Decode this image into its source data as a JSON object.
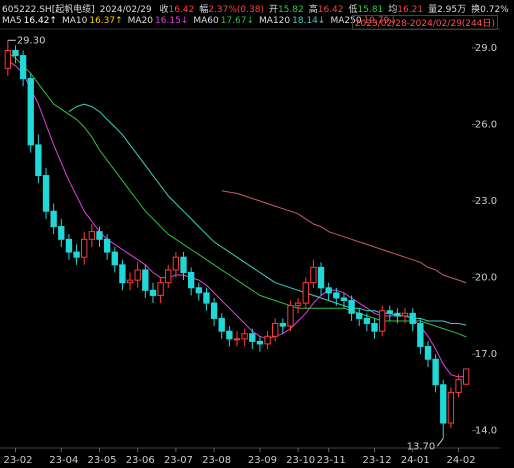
{
  "chart_data": {
    "type": "candlestick",
    "header": {
      "code": "605222.SH[起帆电缆]",
      "date": "2024/02/29",
      "fields": [
        {
          "label": "收",
          "value": "16.42",
          "color": "#ff4040"
        },
        {
          "label": "幅",
          "value": "2.37%(0.38)",
          "color": "#ff4040"
        },
        {
          "label": "开",
          "value": "15.82",
          "color": "#30d040"
        },
        {
          "label": "高",
          "value": "16.42",
          "color": "#ff4040"
        },
        {
          "label": "低",
          "value": "15.81",
          "color": "#30d040"
        },
        {
          "label": "均",
          "value": "16.21",
          "color": "#ff4040"
        },
        {
          "label": "量",
          "value": "2.95万",
          "color": "#dddddd"
        },
        {
          "label": "换",
          "value": "0.72%",
          "color": "#dddddd"
        }
      ],
      "range": "2023/02/28-2024/02/29(244日)"
    },
    "up_color": "#ff3a3a",
    "down_color": "#20d8d8",
    "open": [
      28.2,
      28.9,
      28.7,
      27.8,
      25.2,
      24.0,
      22.6,
      22.0,
      21.5,
      21.0,
      20.8,
      21.5,
      21.8,
      21.5,
      21.0,
      20.5,
      19.8,
      19.9,
      20.3,
      19.5,
      19.3,
      19.8,
      20.3,
      20.8,
      20.2,
      19.6,
      19.4,
      19.0,
      18.4,
      17.9,
      17.6,
      17.6,
      17.8,
      17.5,
      17.4,
      17.7,
      18.2,
      18.1,
      18.9,
      19.0,
      19.8,
      20.4,
      19.6,
      19.4,
      19.2,
      19.1,
      18.6,
      18.4,
      18.2,
      17.9,
      18.7,
      18.6,
      18.5,
      18.6,
      18.2,
      17.3,
      16.8,
      15.8,
      14.3,
      15.5,
      15.82
    ],
    "high": [
      29.3,
      29.1,
      28.9,
      28.0,
      25.6,
      24.3,
      22.9,
      22.3,
      21.7,
      21.3,
      21.8,
      22.1,
      22.0,
      21.7,
      21.2,
      20.7,
      20.2,
      20.6,
      20.5,
      19.8,
      20.0,
      20.5,
      21.0,
      21.0,
      20.4,
      19.8,
      19.6,
      19.2,
      18.6,
      18.1,
      17.9,
      18.0,
      18.0,
      17.7,
      17.9,
      18.4,
      18.4,
      19.1,
      19.2,
      20.0,
      20.7,
      20.6,
      19.8,
      19.6,
      19.4,
      19.3,
      18.8,
      18.6,
      18.4,
      18.9,
      18.9,
      18.8,
      18.8,
      18.8,
      18.4,
      17.5,
      17.0,
      16.0,
      15.7,
      16.2,
      16.42
    ],
    "low": [
      27.9,
      28.4,
      27.5,
      24.9,
      23.7,
      22.3,
      21.7,
      21.2,
      20.7,
      20.5,
      20.5,
      21.2,
      21.2,
      20.7,
      20.2,
      19.5,
      19.5,
      19.6,
      19.2,
      19.0,
      19.0,
      19.6,
      20.0,
      19.9,
      19.3,
      19.1,
      18.7,
      18.1,
      17.6,
      17.3,
      17.3,
      17.3,
      17.2,
      17.1,
      17.2,
      17.5,
      17.8,
      17.9,
      18.6,
      18.8,
      19.6,
      19.3,
      19.1,
      18.9,
      18.8,
      18.3,
      18.1,
      17.9,
      17.6,
      17.7,
      18.3,
      18.2,
      18.2,
      17.9,
      17.0,
      16.5,
      15.5,
      13.7,
      14.1,
      15.3,
      15.81
    ],
    "close": [
      28.9,
      28.7,
      27.8,
      25.2,
      24.0,
      22.6,
      22.0,
      21.5,
      21.0,
      20.8,
      21.5,
      21.8,
      21.5,
      21.0,
      20.5,
      19.8,
      19.9,
      20.3,
      19.5,
      19.3,
      19.8,
      20.3,
      20.8,
      20.2,
      19.6,
      19.4,
      19.0,
      18.4,
      17.9,
      17.6,
      17.6,
      17.8,
      17.5,
      17.4,
      17.7,
      18.2,
      18.1,
      18.9,
      19.0,
      19.8,
      20.4,
      19.6,
      19.4,
      19.2,
      19.1,
      18.6,
      18.4,
      18.2,
      17.9,
      18.7,
      18.6,
      18.5,
      18.6,
      18.2,
      17.3,
      16.8,
      15.8,
      14.3,
      15.5,
      16.0,
      16.42
    ],
    "series": [
      {
        "name": "MA5",
        "color": "#ffffff",
        "value_label": "16.42↑"
      },
      {
        "name": "MA10",
        "color": "#ffd000",
        "value_label": "16.37↑"
      },
      {
        "name": "MA20",
        "color": "#e040e0",
        "value_label": "16.15↓",
        "values": [
          28.5,
          28.3,
          28,
          27.4,
          26.8,
          26,
          25.2,
          24.5,
          23.8,
          23.2,
          22.6,
          22.2,
          21.8,
          21.5,
          21.3,
          21.1,
          20.9,
          20.7,
          20.5,
          20.2,
          20.0,
          20.0,
          20.1,
          20.1,
          20.0,
          19.9,
          19.7,
          19.4,
          19.1,
          18.8,
          18.5,
          18.2,
          17.9,
          17.7,
          17.6,
          17.7,
          17.8,
          18.0,
          18.3,
          18.6,
          19.0,
          19.3,
          19.5,
          19.5,
          19.4,
          19.2,
          19.0,
          18.8,
          18.6,
          18.5,
          18.5,
          18.5,
          18.5,
          18.4,
          18.1,
          17.7,
          17.2,
          16.6,
          16.2,
          16.1,
          16.15
        ]
      },
      {
        "name": "MA60",
        "color": "#30c040",
        "value_label": "17.67↓",
        "values": [
          28.8,
          28.6,
          28.3,
          28.0,
          27.6,
          27.2,
          26.8,
          26.6,
          26.4,
          26.2,
          25.9,
          25.5,
          25.0,
          24.6,
          24.2,
          23.8,
          23.4,
          23.0,
          22.6,
          22.3,
          22.0,
          21.7,
          21.5,
          21.3,
          21.1,
          20.9,
          20.7,
          20.5,
          20.3,
          20.1,
          19.9,
          19.7,
          19.5,
          19.3,
          19.2,
          19.1,
          19.0,
          18.9,
          18.8,
          18.8,
          18.8,
          18.8,
          18.8,
          18.8,
          18.8,
          18.7,
          18.6,
          18.5,
          18.4,
          18.3,
          18.3,
          18.3,
          18.3,
          18.3,
          18.3,
          18.2,
          18.1,
          18.0,
          17.9,
          17.8,
          17.67
        ]
      },
      {
        "name": "MA120",
        "color": "#40d0c0",
        "value_label": "18.14↓",
        "values": [
          null,
          null,
          null,
          null,
          null,
          null,
          null,
          null,
          26.5,
          26.7,
          26.8,
          26.7,
          26.5,
          26.2,
          25.9,
          25.6,
          25.2,
          24.8,
          24.4,
          24.0,
          23.6,
          23.2,
          22.9,
          22.6,
          22.3,
          22.0,
          21.7,
          21.4,
          21.2,
          21.0,
          20.8,
          20.6,
          20.4,
          20.2,
          20.0,
          19.8,
          19.7,
          19.6,
          19.5,
          19.4,
          19.3,
          19.2,
          19.1,
          19.0,
          18.9,
          18.8,
          18.8,
          18.7,
          18.7,
          18.6,
          18.6,
          18.5,
          18.5,
          18.4,
          18.4,
          18.3,
          18.3,
          18.3,
          18.2,
          18.2,
          18.14
        ]
      },
      {
        "name": "MA250",
        "color": "#c06060",
        "value_label": "19.79↓",
        "values": [
          null,
          null,
          null,
          null,
          null,
          null,
          null,
          null,
          null,
          null,
          null,
          null,
          null,
          null,
          null,
          null,
          null,
          null,
          null,
          null,
          null,
          null,
          null,
          null,
          null,
          null,
          null,
          null,
          23.4,
          23.35,
          23.3,
          23.2,
          23.1,
          23.0,
          22.9,
          22.8,
          22.7,
          22.6,
          22.5,
          22.3,
          22.1,
          22.0,
          21.8,
          21.7,
          21.6,
          21.5,
          21.4,
          21.3,
          21.2,
          21.1,
          21.0,
          20.9,
          20.8,
          20.7,
          20.6,
          20.4,
          20.3,
          20.1,
          20.0,
          19.9,
          19.79
        ]
      }
    ],
    "annotations": [
      {
        "index": 0,
        "value": 29.3,
        "label": "29.30"
      },
      {
        "index": 57,
        "value": 13.7,
        "label": "13.70"
      }
    ],
    "ylim": [
      13.4,
      29.35
    ],
    "yticks": [
      {
        "value": 29,
        "label": "29.0"
      },
      {
        "value": 26,
        "label": "26.0"
      },
      {
        "value": 23,
        "label": "23.0"
      },
      {
        "value": 20,
        "label": "20.0"
      },
      {
        "value": 17,
        "label": "17.0"
      },
      {
        "value": 14,
        "label": "14.0"
      }
    ],
    "xticks": [
      {
        "value": 1,
        "label": "23-02"
      },
      {
        "value": 7,
        "label": "23-04"
      },
      {
        "value": 12,
        "label": "23-05"
      },
      {
        "value": 17,
        "label": "23-06"
      },
      {
        "value": 22,
        "label": "23-07"
      },
      {
        "value": 27,
        "label": "23-08"
      },
      {
        "value": 33,
        "label": "23-09"
      },
      {
        "value": 38,
        "label": "23-10"
      },
      {
        "value": 42,
        "label": "23-11"
      },
      {
        "value": 48,
        "label": "23-12"
      },
      {
        "value": 53,
        "label": "24-01"
      },
      {
        "value": 59,
        "label": "24-02"
      }
    ]
  }
}
